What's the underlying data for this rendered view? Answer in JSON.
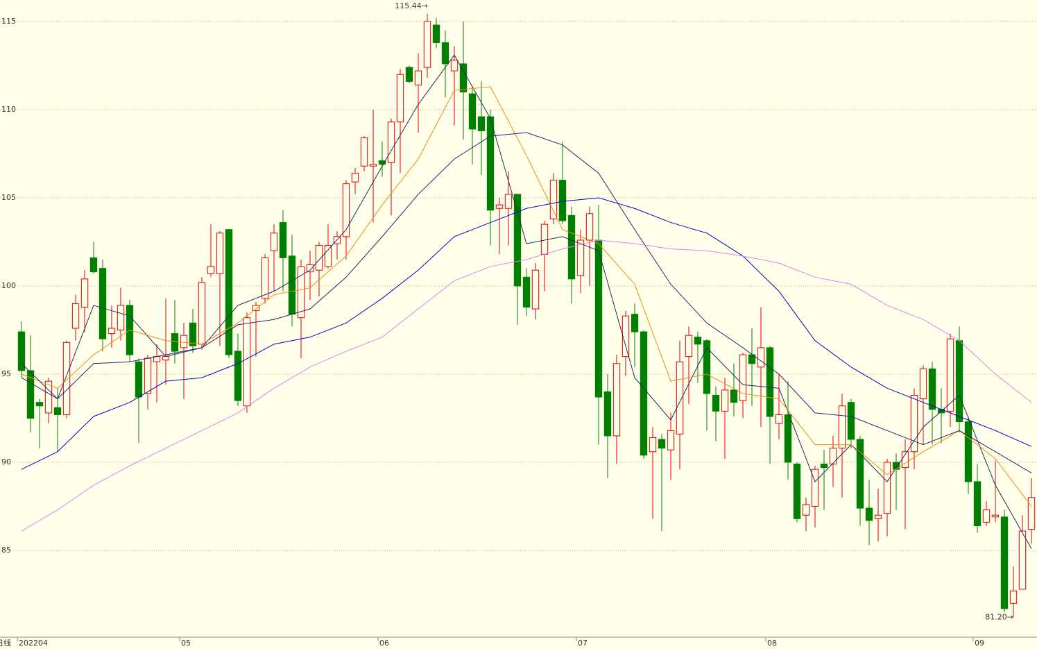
{
  "chart_data": {
    "type": "candlestick",
    "period_label": "日线",
    "categories": [
      "202204",
      null,
      null,
      null,
      null,
      null,
      null,
      null,
      null,
      null,
      null,
      null,
      null,
      null,
      null,
      null,
      null,
      null,
      "05",
      null,
      null,
      null,
      null,
      null,
      null,
      null,
      null,
      null,
      null,
      null,
      null,
      null,
      null,
      null,
      null,
      null,
      null,
      null,
      null,
      null,
      "06",
      null,
      null,
      null,
      null,
      null,
      null,
      null,
      null,
      null,
      null,
      null,
      null,
      null,
      null,
      null,
      null,
      null,
      null,
      null,
      null,
      null,
      "07",
      null,
      null,
      null,
      null,
      null,
      null,
      null,
      null,
      null,
      null,
      null,
      null,
      null,
      null,
      null,
      null,
      null,
      null,
      null,
      null,
      "08",
      null,
      null,
      null,
      null,
      null,
      null,
      null,
      null,
      null,
      null,
      null,
      null,
      null,
      null,
      null,
      null,
      null,
      null,
      null,
      null,
      null,
      null,
      "09",
      null,
      null,
      null,
      null,
      null,
      null
    ],
    "open": [
      97.4,
      95.2,
      93.4,
      92.8,
      93.1,
      92.7,
      97.6,
      98.8,
      101.6,
      101.0,
      97.3,
      97.5,
      98.9,
      95.7,
      93.9,
      95.7,
      95.8,
      97.3,
      96.5,
      97.9,
      96.7,
      100.7,
      100.7,
      103.2,
      96.3,
      93.2,
      98.6,
      99.3,
      102.0,
      103.6,
      101.7,
      98.2,
      100.8,
      100.9,
      101.1,
      102.4,
      102.8,
      105.9,
      106.8,
      106.8,
      107.1,
      107.0,
      109.3,
      112.4,
      111.4,
      112.4,
      114.8,
      113.8,
      112.2,
      112.6,
      110.9,
      109.6,
      109.6,
      104.4,
      104.4,
      105.2,
      100.5,
      98.7,
      101.8,
      103.8,
      106.0,
      104.0,
      100.6,
      102.6,
      102.6,
      94.0,
      91.5,
      96.0,
      98.4,
      97.4,
      90.6,
      91.3,
      90.7,
      91.6,
      96.0,
      97.1,
      96.9,
      93.8,
      92.9,
      94.1,
      93.5,
      96.1,
      95.4,
      96.5,
      92.2,
      92.7,
      89.9,
      87.0,
      87.5,
      89.9,
      89.9,
      90.8,
      93.4,
      91.3,
      87.4,
      86.8,
      87.1,
      90.0,
      89.7,
      90.6,
      93.6,
      95.3,
      93.0,
      92.9,
      96.9,
      92.3,
      88.9,
      86.6,
      86.9,
      86.9,
      82.0,
      82.8,
      86.2
    ],
    "high": [
      98.0,
      97.2,
      93.6,
      94.8,
      94.2,
      96.9,
      99.5,
      100.9,
      102.5,
      101.5,
      98.9,
      99.9,
      99.2,
      95.9,
      96.1,
      96.7,
      99.3,
      99.2,
      97.9,
      98.7,
      100.5,
      103.5,
      103.1,
      103.2,
      97.3,
      98.5,
      99.1,
      101.8,
      103.5,
      104.3,
      102.9,
      101.5,
      102.0,
      102.5,
      103.5,
      103.1,
      106.0,
      106.7,
      108.5,
      110.0,
      108.2,
      109.5,
      112.3,
      112.5,
      113.2,
      115.44,
      115.2,
      114.5,
      113.6,
      115.0,
      111.3,
      111.6,
      110.0,
      105.0,
      106.5,
      105.2,
      101.0,
      101.3,
      103.7,
      106.4,
      108.2,
      104.5,
      103.2,
      104.5,
      104.6,
      95.0,
      96.1,
      98.6,
      99.0,
      97.5,
      92.0,
      91.6,
      92.8,
      96.9,
      97.7,
      97.4,
      97.0,
      94.3,
      94.8,
      95.6,
      96.2,
      97.6,
      98.8,
      96.6,
      95.0,
      94.6,
      90.0,
      88.0,
      89.8,
      90.7,
      91.5,
      93.9,
      93.6,
      91.5,
      89.0,
      88.5,
      90.2,
      90.5,
      91.3,
      94.2,
      95.5,
      95.7,
      94.2,
      97.3,
      97.7,
      92.6,
      89.9,
      87.8,
      90.1,
      87.3,
      84.1,
      87.0,
      89.1
    ],
    "low": [
      94.8,
      91.7,
      90.8,
      92.2,
      90.6,
      92.5,
      96.9,
      97.4,
      100.7,
      96.3,
      96.5,
      96.9,
      95.7,
      91.1,
      93.0,
      93.4,
      94.4,
      95.6,
      93.6,
      96.2,
      96.4,
      100.5,
      96.6,
      95.9,
      93.2,
      92.8,
      96.0,
      99.0,
      99.7,
      99.7,
      97.7,
      95.9,
      99.2,
      99.4,
      101.0,
      101.5,
      101.5,
      105.2,
      106.5,
      103.6,
      106.2,
      104.0,
      106.4,
      111.5,
      108.7,
      111.8,
      113.5,
      110.7,
      109.1,
      108.3,
      106.9,
      106.3,
      102.3,
      101.8,
      102.3,
      97.8,
      98.3,
      98.1,
      99.7,
      103.5,
      103.5,
      99.0,
      99.6,
      100.0,
      91.0,
      89.1,
      89.9,
      94.9,
      95.4,
      90.2,
      86.8,
      86.1,
      89.0,
      89.6,
      93.3,
      94.5,
      91.8,
      91.2,
      90.2,
      92.6,
      92.5,
      93.2,
      92.0,
      89.9,
      91.3,
      89.0,
      86.6,
      86.1,
      86.3,
      87.3,
      88.6,
      88.0,
      90.8,
      86.4,
      85.3,
      85.5,
      85.8,
      87.3,
      86.2,
      89.6,
      91.0,
      91.0,
      91.1,
      92.0,
      91.7,
      88.2,
      86.0,
      86.4,
      86.6,
      81.5,
      81.2,
      82.8,
      85.4
    ],
    "close": [
      95.2,
      92.5,
      93.2,
      94.6,
      92.7,
      96.8,
      99.0,
      100.4,
      100.8,
      97.0,
      97.6,
      98.9,
      96.1,
      93.7,
      95.9,
      96.0,
      96.0,
      96.3,
      97.2,
      96.6,
      100.2,
      101.1,
      103.0,
      96.1,
      93.5,
      98.2,
      98.9,
      101.6,
      103.0,
      101.6,
      98.4,
      101.1,
      101.2,
      102.3,
      102.3,
      102.8,
      105.8,
      106.4,
      108.4,
      106.9,
      106.9,
      109.3,
      112.0,
      111.6,
      112.2,
      115.0,
      113.8,
      112.6,
      112.8,
      111.0,
      108.9,
      108.8,
      104.3,
      104.6,
      105.2,
      100.0,
      98.8,
      100.9,
      103.5,
      106.0,
      103.7,
      100.4,
      102.6,
      104.1,
      93.7,
      91.5,
      95.6,
      98.3,
      97.4,
      90.4,
      91.4,
      90.8,
      91.8,
      95.7,
      97.2,
      96.7,
      93.9,
      92.9,
      94.1,
      93.4,
      96.1,
      95.6,
      96.5,
      92.6,
      92.7,
      90.0,
      86.8,
      87.6,
      89.6,
      89.7,
      90.8,
      93.2,
      91.3,
      87.4,
      86.7,
      87.0,
      90.0,
      89.6,
      90.6,
      93.8,
      95.3,
      93.0,
      92.8,
      97.0,
      92.3,
      88.9,
      86.4,
      87.3,
      87.0,
      81.7,
      82.7,
      86.1,
      88.0
    ],
    "up_color": "#e00000",
    "down_color": "#008000",
    "lines": [
      {
        "color": "#1c2c5c",
        "x": [
          0,
          4,
          8,
          12,
          16,
          20,
          24,
          28,
          32,
          36,
          40,
          44,
          48,
          52,
          56,
          60,
          64,
          68,
          72,
          76,
          80,
          84,
          88,
          92,
          96,
          100,
          104,
          108,
          112
        ],
        "values": [
          94.8,
          93.6,
          98.9,
          98.3,
          96.0,
          96.5,
          98.9,
          99.7,
          100.9,
          103.2,
          106.8,
          110.3,
          113.1,
          109.5,
          102.4,
          102.8,
          102.0,
          94.8,
          92.4,
          96.5,
          94.4,
          94.2,
          88.9,
          91.0,
          88.9,
          92.0,
          93.8,
          88.7,
          85.1
        ]
      },
      {
        "color": "#f08c10",
        "x": [
          0,
          4,
          8,
          12,
          16,
          20,
          24,
          28,
          32,
          36,
          40,
          44,
          48,
          52,
          56,
          60,
          64,
          68,
          72,
          76,
          80,
          84,
          88,
          92,
          96,
          100,
          104,
          108,
          112
        ],
        "values": [
          95.0,
          94.2,
          96.1,
          97.5,
          96.9,
          96.7,
          97.9,
          99.5,
          99.9,
          101.7,
          104.6,
          107.2,
          111.1,
          111.3,
          107.4,
          103.2,
          102.4,
          100.1,
          94.6,
          95.0,
          93.9,
          93.6,
          91.0,
          91.0,
          89.3,
          90.6,
          91.8,
          90.2,
          87.5
        ]
      },
      {
        "color": "#30206e",
        "x": [
          0,
          4,
          8,
          12,
          16,
          20,
          24,
          28,
          32,
          36,
          40,
          44,
          48,
          52,
          56,
          60,
          64,
          68,
          72,
          76,
          80,
          84,
          88,
          92,
          96,
          100,
          104,
          108,
          112
        ],
        "values": [
          95.6,
          93.6,
          95.6,
          95.7,
          96.1,
          96.5,
          97.8,
          98.1,
          98.7,
          100.5,
          102.8,
          105.2,
          107.2,
          108.5,
          108.7,
          108.0,
          106.4,
          103.2,
          100.1,
          97.9,
          96.5,
          95.0,
          92.8,
          92.6,
          91.8,
          91.0,
          91.8,
          90.6,
          89.4
        ]
      },
      {
        "color": "#0000d0",
        "x": [
          0,
          4,
          8,
          12,
          16,
          20,
          24,
          28,
          32,
          36,
          40,
          44,
          48,
          52,
          56,
          60,
          64,
          68,
          72,
          76,
          80,
          84,
          88,
          92,
          96,
          100,
          104,
          108,
          112
        ],
        "values": [
          89.6,
          90.6,
          92.6,
          93.4,
          94.6,
          94.8,
          95.6,
          96.7,
          97.1,
          97.9,
          99.3,
          100.9,
          102.8,
          103.6,
          104.4,
          104.8,
          105.0,
          104.4,
          103.6,
          103.0,
          101.7,
          99.7,
          96.9,
          95.4,
          94.2,
          93.4,
          92.6,
          91.8,
          90.9
        ]
      },
      {
        "color": "#e080f0",
        "x": [
          0,
          4,
          8,
          12,
          16,
          20,
          24,
          28,
          32,
          36,
          40,
          44,
          48,
          52,
          56,
          60,
          64,
          68,
          72,
          76,
          80,
          84,
          88,
          92,
          96,
          100,
          104,
          108,
          112
        ],
        "values": [
          86.1,
          87.3,
          88.7,
          89.8,
          90.8,
          91.8,
          92.8,
          94.2,
          95.4,
          96.3,
          97.1,
          98.7,
          100.3,
          101.1,
          101.5,
          102.1,
          102.6,
          102.4,
          102.1,
          102.0,
          101.7,
          101.3,
          100.5,
          100.1,
          98.9,
          98.1,
          96.9,
          95.0,
          93.4
        ]
      }
    ],
    "annotations": [
      "115.44→",
      "81.20→"
    ],
    "ylim": [
      80.08,
      116.22
    ],
    "yticks": [
      85,
      90,
      95,
      100,
      105,
      110,
      115
    ],
    "grid": true
  }
}
